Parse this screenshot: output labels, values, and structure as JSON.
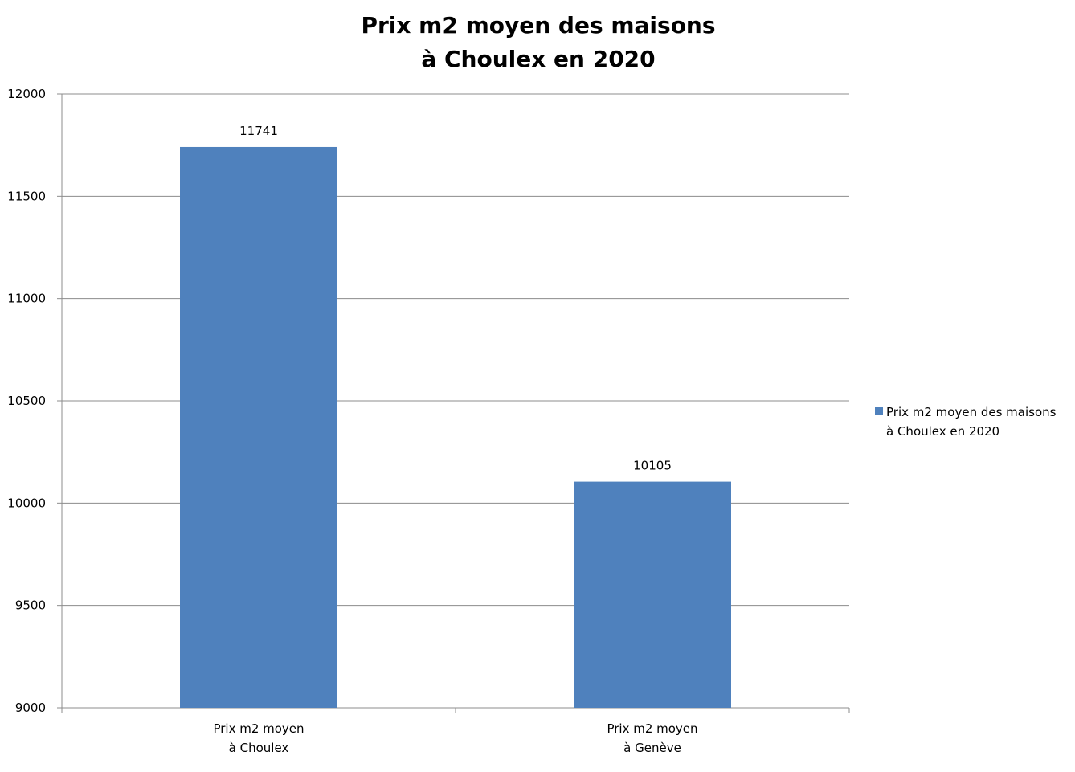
{
  "chart_data": {
    "type": "bar",
    "title": "Prix m2 moyen des maisons\nà Choulex en 2020",
    "categories": [
      "Prix m2 moyen\nà Choulex",
      "Prix m2 moyen\nà Genève"
    ],
    "series": [
      {
        "name": "Prix m2 moyen des maisons\nà Choulex en 2020",
        "color": "#4f81bd",
        "values": [
          11741,
          10105
        ]
      }
    ],
    "ylim": [
      9000,
      12000
    ],
    "yticks": [
      9000,
      9500,
      10000,
      10500,
      11000,
      11500,
      12000
    ],
    "grid": true,
    "legend": "right"
  }
}
